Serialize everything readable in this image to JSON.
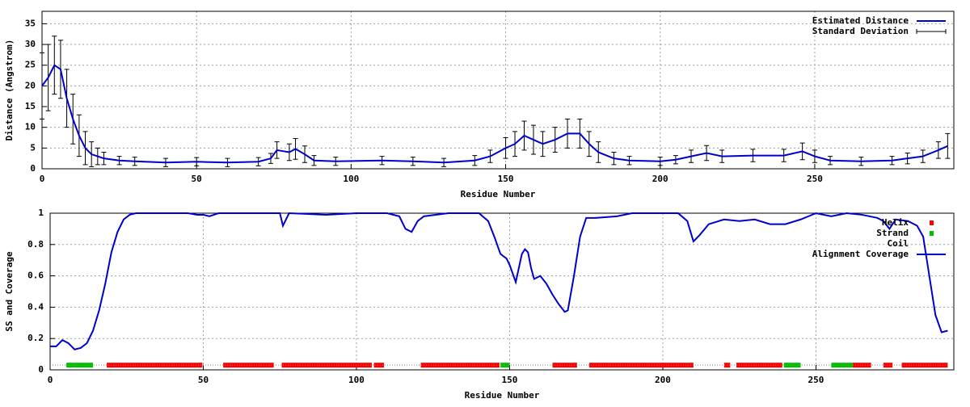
{
  "chart_data": [
    {
      "type": "line",
      "xlabel": "Residue Number",
      "ylabel": "Distance (Angstrom)",
      "xlim": [
        0,
        295
      ],
      "ylim": [
        0,
        38
      ],
      "xticks": [
        0,
        50,
        100,
        150,
        200,
        250
      ],
      "yticks": [
        0,
        5,
        10,
        15,
        20,
        25,
        30,
        35
      ],
      "grid": true,
      "legend": "top-right",
      "x": [
        0,
        2,
        4,
        6,
        8,
        10,
        12,
        14,
        16,
        18,
        20,
        25,
        30,
        40,
        50,
        60,
        70,
        74,
        76,
        80,
        82,
        85,
        88,
        95,
        110,
        120,
        130,
        140,
        145,
        150,
        153,
        156,
        159,
        162,
        166,
        170,
        174,
        177,
        180,
        185,
        190,
        200,
        205,
        210,
        215,
        220,
        230,
        240,
        246,
        250,
        255,
        265,
        275,
        280,
        285,
        290,
        293
      ],
      "series": [
        {
          "name": "Estimated Distance",
          "color": "#0000cc",
          "style": "line",
          "values": [
            20,
            22,
            25,
            24,
            17,
            12,
            8,
            5,
            3.5,
            3,
            2.5,
            2,
            1.8,
            1.5,
            1.7,
            1.5,
            1.7,
            2.5,
            4.5,
            4,
            4.8,
            3.5,
            2,
            1.8,
            2,
            1.8,
            1.5,
            2,
            3,
            5,
            6,
            8,
            7,
            6,
            7,
            8.5,
            8.5,
            6,
            4,
            2.5,
            2,
            1.8,
            2.2,
            3,
            3.8,
            3,
            3.2,
            3.2,
            4.2,
            3,
            2,
            1.8,
            2,
            2.5,
            3,
            4.5,
            5.5
          ]
        },
        {
          "name": "Standard Deviation",
          "color": "#000000",
          "style": "errorbars",
          "values": [
            8,
            8,
            7,
            7,
            7,
            6,
            5,
            4,
            3,
            2,
            1.5,
            1,
            1,
            1,
            1,
            1,
            1,
            1.2,
            2,
            2,
            2.5,
            2,
            1.2,
            1,
            1,
            1,
            1,
            1.2,
            1.5,
            2.5,
            3,
            3.5,
            3.5,
            3,
            3,
            3.5,
            3.5,
            3,
            2.5,
            1.5,
            1,
            1,
            1,
            1.5,
            1.8,
            1.5,
            1.5,
            1.5,
            2,
            1.5,
            1,
            1,
            1,
            1.3,
            1.5,
            2,
            3
          ]
        }
      ]
    },
    {
      "type": "line",
      "xlabel": "Residue Number",
      "ylabel": "SS and Coverage",
      "xlim": [
        0,
        295
      ],
      "ylim": [
        0,
        1
      ],
      "xticks": [
        0,
        50,
        100,
        150,
        200,
        250
      ],
      "yticks": [
        0,
        0.2,
        0.4,
        0.6,
        0.8,
        1
      ],
      "grid": true,
      "legend": "top-right",
      "tracks": [
        {
          "name": "Helix",
          "color": "#ff0000",
          "level": 0.03,
          "ranges": [
            [
              18.5,
              49.7
            ],
            [
              56.5,
              73
            ],
            [
              75.6,
              105
            ],
            [
              105.7,
              109
            ],
            [
              121,
              146.7
            ],
            [
              164,
              172
            ],
            [
              176,
              210
            ],
            [
              220,
              222
            ],
            [
              224,
              239
            ],
            [
              262,
              268
            ],
            [
              272,
              275
            ],
            [
              278,
              293
            ]
          ]
        },
        {
          "name": "Strand",
          "color": "#00c000",
          "level": 0.03,
          "ranges": [
            [
              5.3,
              14
            ],
            [
              147,
              150
            ],
            [
              239.5,
              245
            ],
            [
              255,
              262
            ]
          ]
        },
        {
          "name": "Coil",
          "color": "#888888",
          "level": 0.03,
          "ranges": [
            [
              0,
              293
            ]
          ]
        }
      ],
      "x": [
        0,
        2,
        4,
        6,
        8,
        10,
        12,
        14,
        16,
        18,
        20,
        22,
        24,
        26,
        28,
        35,
        45,
        48,
        50,
        52,
        55,
        60,
        75,
        76,
        78,
        90,
        100,
        110,
        114,
        116,
        118,
        120,
        122,
        130,
        140,
        143,
        145,
        147,
        149,
        150,
        152,
        153,
        154,
        155,
        156,
        157,
        158,
        160,
        162,
        164,
        166,
        168,
        169,
        171,
        173,
        175,
        178,
        185,
        190,
        200,
        205,
        208,
        210,
        212,
        215,
        220,
        225,
        230,
        235,
        240,
        245,
        250,
        255,
        260,
        265,
        270,
        272,
        274,
        276,
        280,
        283,
        285,
        287,
        289,
        291,
        293
      ],
      "series": [
        {
          "name": "Alignment Coverage",
          "color": "#0000cc",
          "style": "line",
          "values": [
            0.15,
            0.15,
            0.19,
            0.17,
            0.13,
            0.14,
            0.17,
            0.25,
            0.38,
            0.55,
            0.75,
            0.88,
            0.96,
            0.99,
            1,
            1,
            1,
            0.99,
            0.99,
            0.98,
            1,
            1,
            1,
            0.92,
            1,
            0.99,
            1,
            1,
            0.98,
            0.9,
            0.88,
            0.95,
            0.98,
            1,
            1,
            0.95,
            0.85,
            0.74,
            0.71,
            0.67,
            0.56,
            0.65,
            0.74,
            0.77,
            0.75,
            0.65,
            0.58,
            0.6,
            0.55,
            0.48,
            0.42,
            0.37,
            0.38,
            0.6,
            0.85,
            0.97,
            0.97,
            0.98,
            1,
            1,
            1,
            0.95,
            0.82,
            0.86,
            0.93,
            0.96,
            0.95,
            0.96,
            0.93,
            0.93,
            0.96,
            1,
            0.98,
            1,
            0.99,
            0.97,
            0.95,
            0.9,
            0.96,
            0.95,
            0.92,
            0.85,
            0.6,
            0.35,
            0.24,
            0.25
          ]
        }
      ]
    }
  ]
}
